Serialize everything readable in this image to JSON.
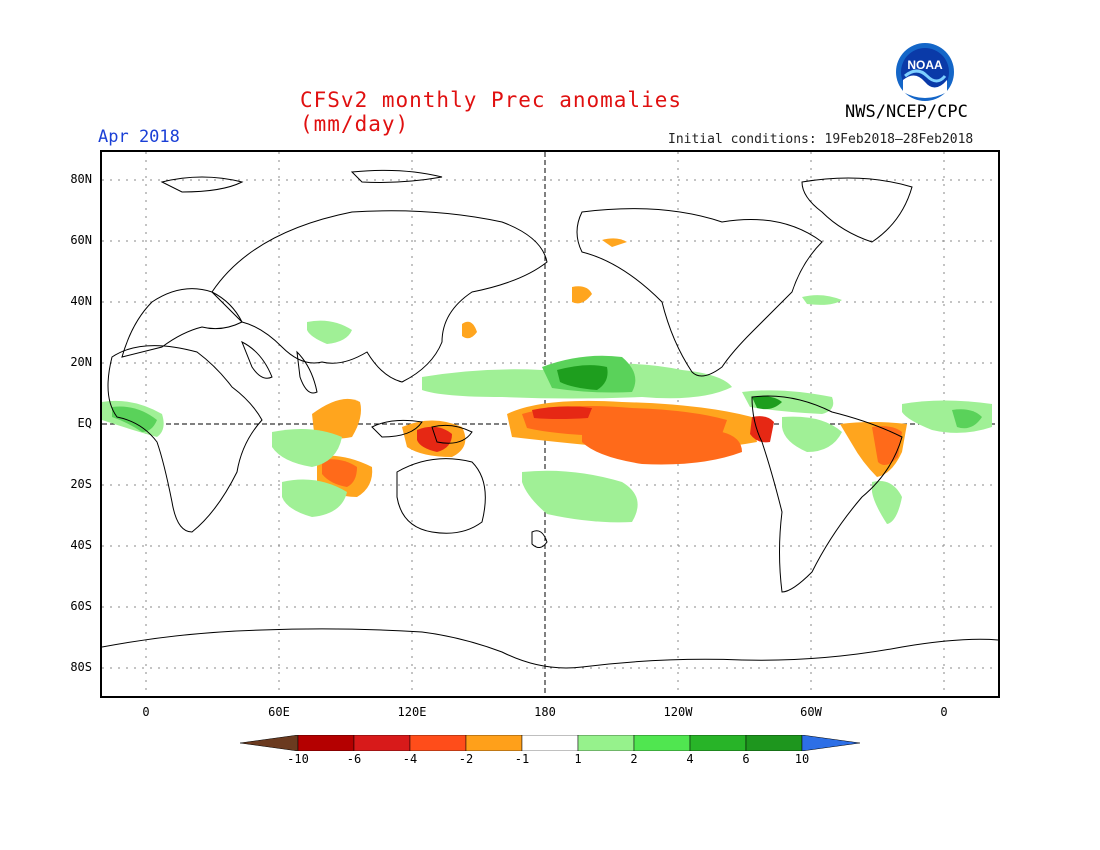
{
  "title": "CFSv2 monthly Prec anomalies (mm/day)",
  "agency": "NWS/NCEP/CPC",
  "valid_month": "Apr 2018",
  "initial_conditions": "Initial conditions: 19Feb2018–28Feb2018",
  "logo": {
    "text": "NOAA",
    "icon": "noaa-logo"
  },
  "lat_labels": [
    "80N",
    "60N",
    "40N",
    "20N",
    "EQ",
    "20S",
    "40S",
    "60S",
    "80S"
  ],
  "lon_labels": [
    "0",
    "60E",
    "120E",
    "180",
    "120W",
    "60W",
    "0"
  ],
  "colorbar": {
    "labels": [
      "-10",
      "-6",
      "-4",
      "-2",
      "-1",
      "1",
      "2",
      "4",
      "6",
      "10"
    ],
    "colors": [
      "#6b3a1f",
      "#b40000",
      "#d81a1a",
      "#ff4d1a",
      "#ffa01a",
      "#ffffff",
      "#96f28c",
      "#50e650",
      "#28b428",
      "#1e961e",
      "#2d6fe6"
    ]
  },
  "anomaly_colors": {
    "strong_dry": "#e62814",
    "dry": "#ff6a1a",
    "weak_dry": "#ffa51e",
    "weak_wet": "#a0f096",
    "wet": "#5ad25a",
    "strong_wet": "#1e9e1e"
  }
}
